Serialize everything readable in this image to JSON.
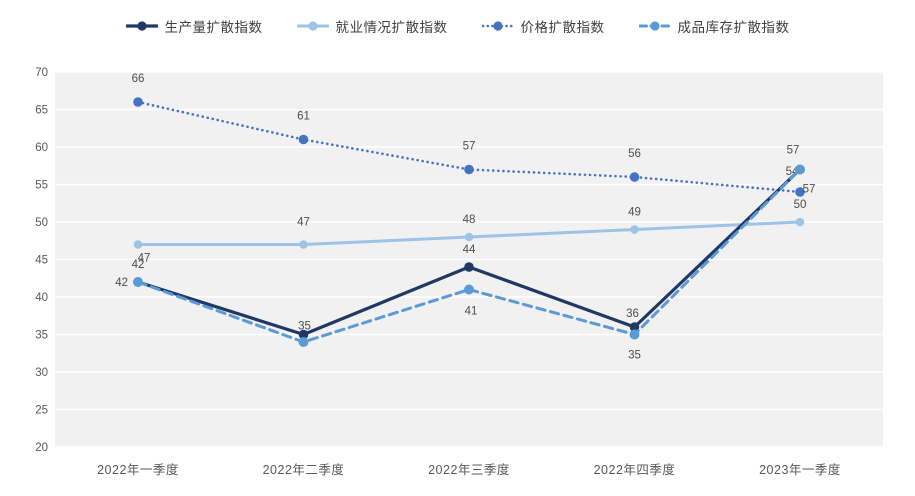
{
  "chart_data": {
    "type": "line",
    "title": "",
    "categories": [
      "2022年一季度",
      "2022年二季度",
      "2022年三季度",
      "2022年四季度",
      "2023年一季度"
    ],
    "series": [
      {
        "name": "生产量扩散指数",
        "style": "solid",
        "color": "#1f3864",
        "values": [
          42,
          35,
          44,
          36,
          57
        ],
        "labels": [
          "42",
          "35",
          "44",
          "36",
          "57"
        ]
      },
      {
        "name": "就业情况扩散指数",
        "style": "solid",
        "color": "#9dc3e6",
        "values": [
          47,
          47,
          48,
          49,
          50
        ],
        "labels": [
          "47",
          "47",
          "48",
          "49",
          "50"
        ]
      },
      {
        "name": "价格扩散指数",
        "style": "dotted",
        "color": "#4472c4",
        "values": [
          66,
          61,
          57,
          56,
          54
        ],
        "labels": [
          "66",
          "61",
          "57",
          "56",
          "54"
        ]
      },
      {
        "name": "成品库存扩散指数",
        "style": "dashed",
        "color": "#5b9bd5",
        "values": [
          42,
          34,
          41,
          35,
          57
        ],
        "labels": [
          "42",
          "",
          "41",
          "35",
          "57"
        ]
      }
    ],
    "ylim": [
      20,
      70
    ],
    "yticks": [
      20,
      25,
      30,
      35,
      40,
      45,
      50,
      55,
      60,
      65,
      70
    ],
    "grid": true,
    "legend_position": "top",
    "xlabel": "",
    "ylabel": "",
    "colors": {
      "plot_background": "#f1f1f1",
      "gridline": "#ffffff",
      "axis_text": "#595959",
      "data_label_text": "#4d4d4d",
      "legend_text": "#404040"
    }
  }
}
